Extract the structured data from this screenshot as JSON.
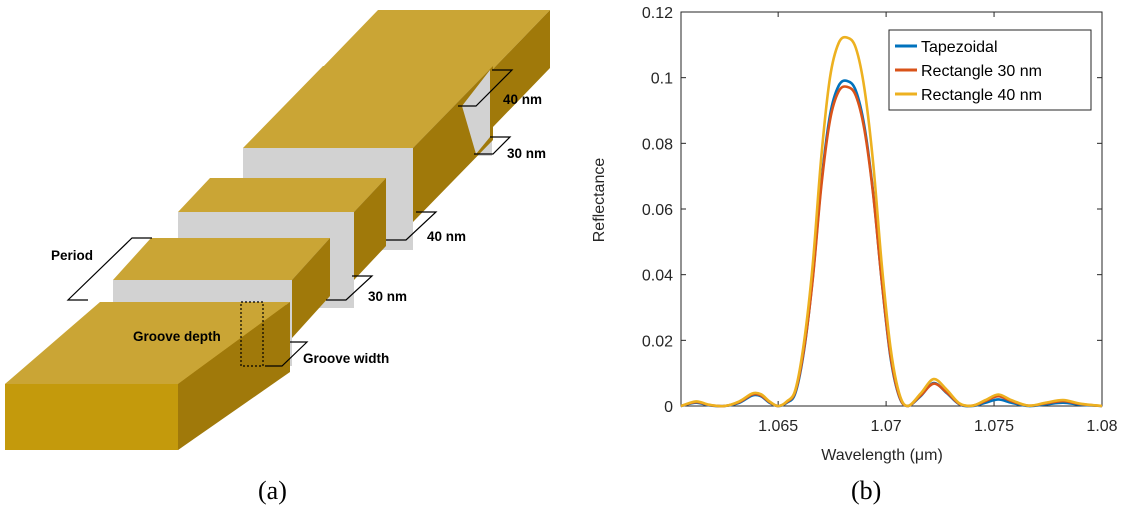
{
  "panel_a": {
    "caption": "(a)",
    "labels": {
      "d40_top": "40 nm",
      "w30_top": "30 nm",
      "d40_mid": "40 nm",
      "w30_mid": "30 nm",
      "period": "Period",
      "groove_depth": "Groove depth",
      "groove_width": "Groove width"
    },
    "colors": {
      "gold_top": "#caa535",
      "gold_front": "#c49a0c",
      "gold_side": "#a0790a",
      "groove": "#d2d2d2"
    }
  },
  "panel_b": {
    "caption": "(b)",
    "chart_data": {
      "type": "line",
      "title": "",
      "xlabel": "Wavelength (μm)",
      "ylabel": "Reflectance",
      "xlim": [
        1.0605,
        1.08
      ],
      "ylim": [
        0,
        0.12
      ],
      "xticks": [
        1.065,
        1.07,
        1.075,
        1.08
      ],
      "xtick_labels": [
        "1.065",
        "1.07",
        "1.075",
        "1.08"
      ],
      "yticks": [
        0,
        0.02,
        0.04,
        0.06,
        0.08,
        0.1,
        0.12
      ],
      "ytick_labels": [
        "0",
        "0.02",
        "0.04",
        "0.06",
        "0.08",
        "0.1",
        "0.12"
      ],
      "grid": false,
      "legend_position": "top-right",
      "x": [
        1.0605,
        1.0612,
        1.0618,
        1.0625,
        1.0632,
        1.0638,
        1.0642,
        1.0646,
        1.065,
        1.0654,
        1.0658,
        1.0662,
        1.0666,
        1.067,
        1.0674,
        1.0678,
        1.0682,
        1.0686,
        1.069,
        1.0694,
        1.0698,
        1.0702,
        1.0706,
        1.071,
        1.0716,
        1.0722,
        1.0728,
        1.0734,
        1.074,
        1.0746,
        1.0752,
        1.0758,
        1.0766,
        1.0774,
        1.0782,
        1.079,
        1.08
      ],
      "series": [
        {
          "name": "Tapezoidal",
          "color": "#0072bd",
          "values": [
            0.0,
            0.001,
            0.0002,
            0.0,
            0.001,
            0.0032,
            0.003,
            0.001,
            0.0,
            0.001,
            0.004,
            0.017,
            0.039,
            0.068,
            0.0885,
            0.0975,
            0.099,
            0.096,
            0.085,
            0.065,
            0.038,
            0.015,
            0.003,
            0.0,
            0.003,
            0.007,
            0.004,
            0.0005,
            0.0,
            0.001,
            0.002,
            0.001,
            0.0,
            0.0005,
            0.001,
            0.0004,
            0.0
          ]
        },
        {
          "name": "Rectangle 30 nm",
          "color": "#d95319",
          "values": [
            0.0,
            0.0012,
            0.0003,
            0.0,
            0.0012,
            0.0035,
            0.0032,
            0.0012,
            0.0,
            0.0012,
            0.0045,
            0.0175,
            0.0385,
            0.067,
            0.087,
            0.0958,
            0.0972,
            0.0945,
            0.084,
            0.0645,
            0.038,
            0.0155,
            0.0032,
            0.0,
            0.0032,
            0.0068,
            0.0042,
            0.0006,
            0.0001,
            0.0015,
            0.003,
            0.0015,
            0.0001,
            0.0008,
            0.0015,
            0.0006,
            0.0
          ]
        },
        {
          "name": "Rectangle 40 nm",
          "color": "#edb120",
          "values": [
            0.0,
            0.0014,
            0.0004,
            0.0,
            0.0014,
            0.0038,
            0.0036,
            0.0014,
            0.0,
            0.0014,
            0.005,
            0.0195,
            0.043,
            0.076,
            0.1,
            0.1105,
            0.1122,
            0.109,
            0.0965,
            0.074,
            0.043,
            0.018,
            0.004,
            0.0,
            0.0038,
            0.0082,
            0.005,
            0.0008,
            0.0001,
            0.0018,
            0.0035,
            0.0018,
            0.0001,
            0.001,
            0.0018,
            0.0007,
            0.0
          ]
        }
      ]
    }
  }
}
